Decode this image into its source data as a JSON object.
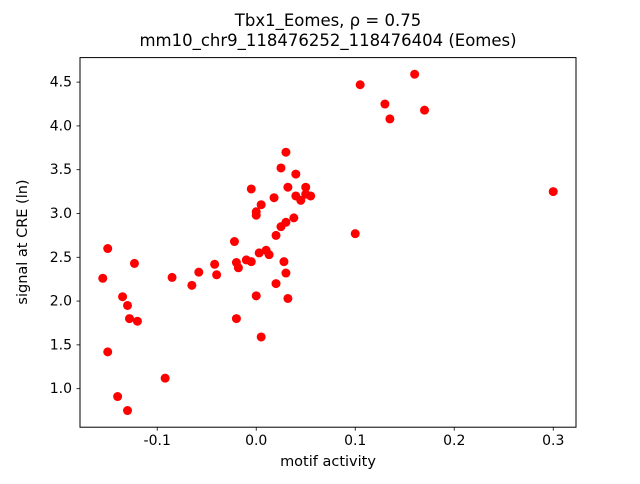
{
  "chart_data": {
    "type": "scatter",
    "title_line1": "Tbx1_Eomes, ρ = 0.75",
    "title_line2": "mm10_chr9_118476252_118476404 (Eomes)",
    "xlabel": "motif activity",
    "ylabel": "signal at CRE (ln)",
    "xlim": [
      -0.178,
      0.323
    ],
    "ylim": [
      0.56,
      4.78
    ],
    "grid": false,
    "legend": "none",
    "point_color": "#ff0000",
    "axis_color": "#000000",
    "xticks": {
      "values": [
        -0.1,
        0.0,
        0.1,
        0.2,
        0.3
      ],
      "labels": [
        "-0.1",
        "0.0",
        "0.1",
        "0.2",
        "0.3"
      ]
    },
    "yticks": {
      "values": [
        1.0,
        1.5,
        2.0,
        2.5,
        3.0,
        3.5,
        4.0,
        4.5
      ],
      "labels": [
        "1.0",
        "1.5",
        "2.0",
        "2.5",
        "3.0",
        "3.5",
        "4.0",
        "4.5"
      ]
    },
    "points": [
      [
        -0.155,
        2.26
      ],
      [
        -0.15,
        2.6
      ],
      [
        -0.15,
        1.42
      ],
      [
        -0.14,
        0.91
      ],
      [
        -0.135,
        2.05
      ],
      [
        -0.13,
        1.95
      ],
      [
        -0.128,
        1.8
      ],
      [
        -0.13,
        0.75
      ],
      [
        -0.123,
        2.43
      ],
      [
        -0.12,
        1.77
      ],
      [
        -0.092,
        1.12
      ],
      [
        -0.085,
        2.27
      ],
      [
        -0.065,
        2.18
      ],
      [
        -0.058,
        2.33
      ],
      [
        -0.042,
        2.42
      ],
      [
        -0.04,
        2.3
      ],
      [
        -0.022,
        2.68
      ],
      [
        -0.02,
        2.44
      ],
      [
        -0.018,
        2.38
      ],
      [
        -0.02,
        1.8
      ],
      [
        -0.01,
        2.47
      ],
      [
        -0.005,
        3.28
      ],
      [
        -0.005,
        2.45
      ],
      [
        0.0,
        3.02
      ],
      [
        0.0,
        2.98
      ],
      [
        0.0,
        2.06
      ],
      [
        0.005,
        3.1
      ],
      [
        0.003,
        2.55
      ],
      [
        0.005,
        1.59
      ],
      [
        0.01,
        2.58
      ],
      [
        0.013,
        2.53
      ],
      [
        0.018,
        3.18
      ],
      [
        0.02,
        2.75
      ],
      [
        0.02,
        2.2
      ],
      [
        0.025,
        3.52
      ],
      [
        0.025,
        2.85
      ],
      [
        0.028,
        2.45
      ],
      [
        0.03,
        3.7
      ],
      [
        0.032,
        3.3
      ],
      [
        0.03,
        2.9
      ],
      [
        0.03,
        2.32
      ],
      [
        0.032,
        2.03
      ],
      [
        0.04,
        3.45
      ],
      [
        0.04,
        3.2
      ],
      [
        0.038,
        2.95
      ],
      [
        0.045,
        3.15
      ],
      [
        0.05,
        3.3
      ],
      [
        0.05,
        3.22
      ],
      [
        0.055,
        3.2
      ],
      [
        0.1,
        2.77
      ],
      [
        0.105,
        4.47
      ],
      [
        0.13,
        4.25
      ],
      [
        0.135,
        4.08
      ],
      [
        0.16,
        4.59
      ],
      [
        0.17,
        4.18
      ],
      [
        0.3,
        3.25
      ]
    ]
  }
}
